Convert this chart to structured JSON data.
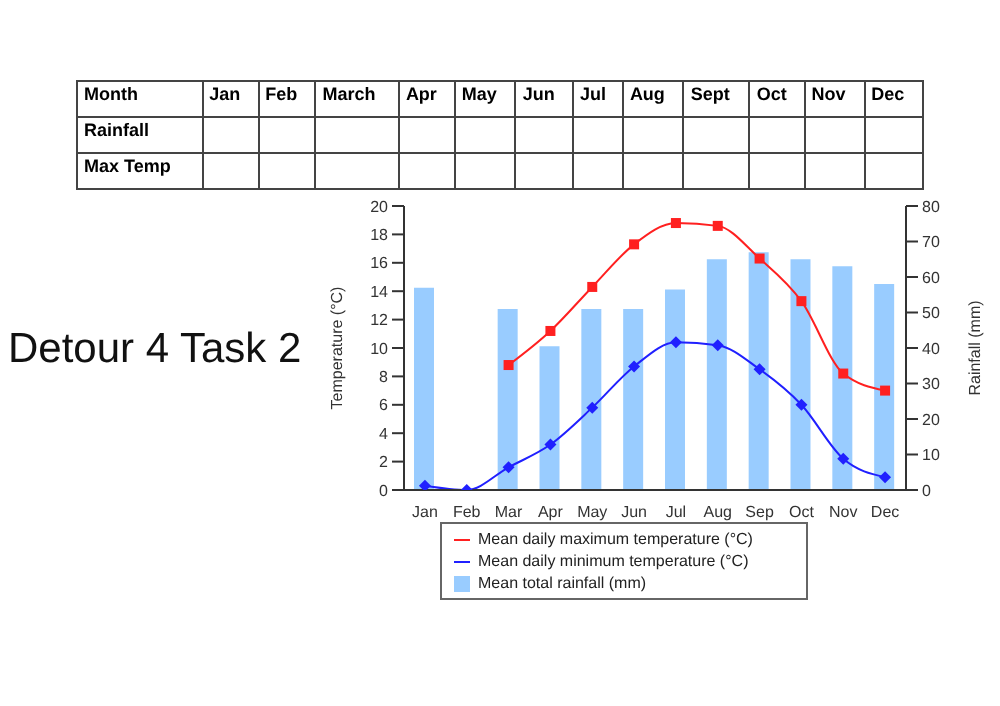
{
  "chart_data": [
    {
      "type": "other",
      "xlabel": "Month",
      "categories": [
        "Jan",
        "Feb",
        "March",
        "Apr",
        "May",
        "Jun",
        "Jul",
        "Aug",
        "Sept",
        "Oct",
        "Nov",
        "Dec"
      ],
      "y_categories": [
        "Rainfall",
        "Max Temp"
      ]
    },
    {
      "type": "line",
      "title": "Detour 4 Task 2",
      "ylabel": "Temperature (°C)",
      "y2label": "Rainfall (mm)",
      "categories": [
        "Jan",
        "Feb",
        "Mar",
        "Apr",
        "May",
        "Jun",
        "Jul",
        "Aug",
        "Sep",
        "Oct",
        "Nov",
        "Dec"
      ],
      "series": [
        {
          "name": "Mean daily maximum temperature (°C)",
          "type": "line",
          "color": "#ff2020",
          "marker": "square",
          "values": [
            null,
            null,
            8.8,
            11.2,
            14.3,
            17.3,
            18.8,
            18.6,
            16.3,
            13.3,
            8.2,
            7.0
          ]
        },
        {
          "name": "Mean daily minimum temperature (°C)",
          "type": "line",
          "color": "#2020ff",
          "marker": "diamond",
          "values": [
            0.3,
            0,
            1.6,
            3.2,
            5.8,
            8.7,
            10.4,
            10.2,
            8.5,
            6.0,
            2.2,
            0.9
          ]
        },
        {
          "name": "Mean total rainfall (mm)",
          "type": "bar",
          "axis": "y2",
          "color": "#99ccff",
          "values": [
            57,
            null,
            51,
            40.5,
            51,
            51,
            56.5,
            65,
            67,
            65,
            63,
            58
          ]
        }
      ],
      "ylim": [
        0,
        20
      ],
      "yticks": [
        0,
        2,
        4,
        6,
        8,
        10,
        12,
        14,
        16,
        18,
        20
      ],
      "y2lim": [
        0,
        80
      ],
      "y2ticks": [
        0,
        10,
        20,
        30,
        40,
        50,
        60,
        70,
        80
      ],
      "legend": "bottom"
    }
  ]
}
